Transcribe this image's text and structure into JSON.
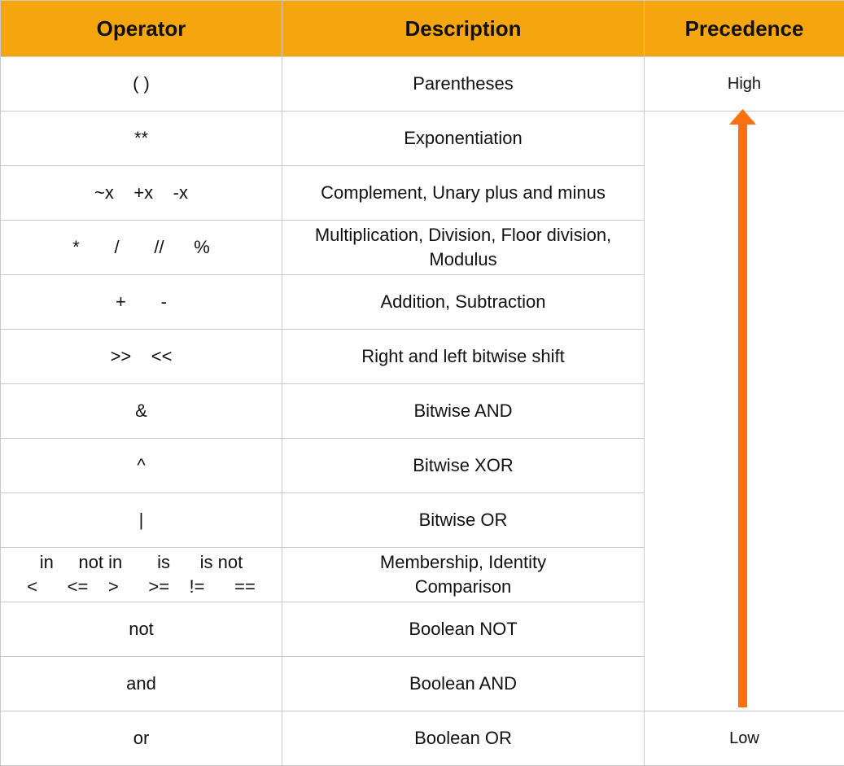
{
  "header": {
    "operator": "Operator",
    "description": "Description",
    "precedence": "Precedence"
  },
  "rows": [
    {
      "operator": "( )",
      "description": "Parentheses"
    },
    {
      "operator": "**",
      "description": "Exponentiation"
    },
    {
      "operator": "~x    +x    -x",
      "description": "Complement, Unary plus and minus"
    },
    {
      "operator": "*       /       //      %",
      "description": "Multiplication, Division, Floor division,\nModulus"
    },
    {
      "operator": "+       -",
      "description": "Addition, Subtraction"
    },
    {
      "operator": ">>    <<",
      "description": "Right and left bitwise shift"
    },
    {
      "operator": "&",
      "description": "Bitwise AND"
    },
    {
      "operator": "^",
      "description": "Bitwise XOR"
    },
    {
      "operator": "|",
      "description": "Bitwise OR"
    },
    {
      "operator": "in     not in       is      is not\n<      <=    >      >=    !=      ==",
      "description": "Membership, Identity\nComparison"
    },
    {
      "operator": "not",
      "description": "Boolean NOT"
    },
    {
      "operator": "and",
      "description": "Boolean AND"
    },
    {
      "operator": "or",
      "description": "Boolean OR"
    }
  ],
  "precedence": {
    "high": "High",
    "low": "Low",
    "arrow_color": "#ff6f0f"
  },
  "colors": {
    "header_bg": "#f5a60e",
    "border": "#c9c9c9"
  }
}
